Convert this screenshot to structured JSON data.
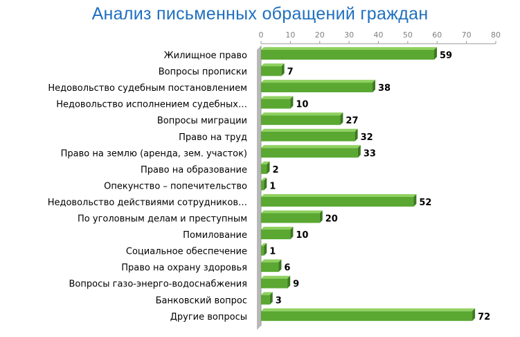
{
  "chart_data": {
    "type": "bar",
    "orientation": "horizontal",
    "title": "Анализ письменных обращений граждан",
    "xlim": [
      0,
      80
    ],
    "ticks": [
      "0",
      "10",
      "20",
      "30",
      "40",
      "50",
      "60",
      "70",
      "80"
    ],
    "grid": false,
    "categories": [
      "Жилищное право",
      "Вопросы прописки",
      "Недовольство судебным постановлением",
      "Недовольство исполнением судебных…",
      "Вопросы миграции",
      "Право на труд",
      "Право на землю  (аренда, зем. участок)",
      "Право на образование",
      "Опекунство – попечительство",
      "Недовольство действиями сотрудников…",
      "По уголовным делам и преступным",
      "Помилование",
      "Социальное обеспечение",
      "Право на охрану здоровья",
      "Вопросы газо-энерго-водоснабжения",
      "Банковский вопрос",
      "Другие вопросы"
    ],
    "values": [
      59,
      7,
      38,
      10,
      27,
      32,
      33,
      2,
      1,
      52,
      20,
      10,
      1,
      6,
      9,
      3,
      72
    ],
    "colors": {
      "bar": "#5aa832",
      "bar_top": "#8fd160",
      "bar_side": "#3b7a1e",
      "axis_wall": "#b8b8b8",
      "title": "#1f6fbf"
    }
  }
}
